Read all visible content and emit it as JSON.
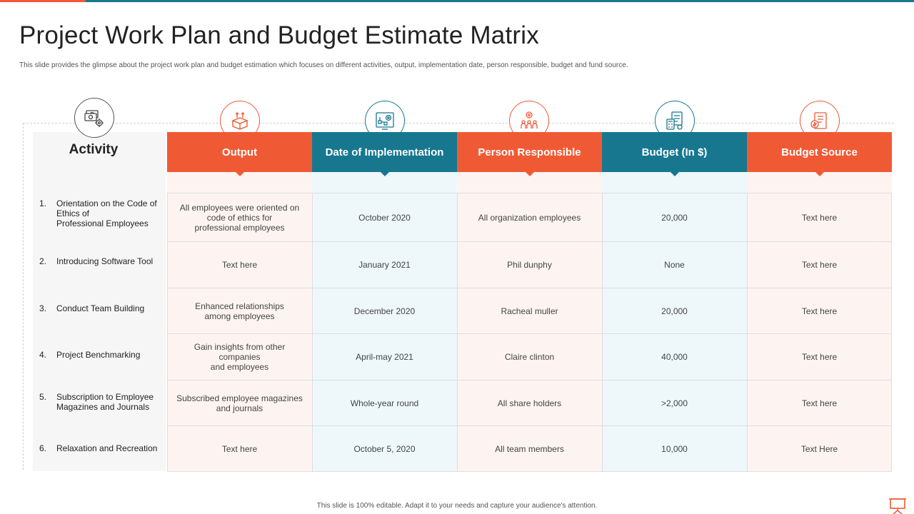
{
  "title": "Project Work Plan and Budget Estimate Matrix",
  "subtitle": "This slide provides the glimpse about the project work plan and budget estimation  which focuses on different activities, output, implementation  date, person responsible, budget and fund source.",
  "activity_header": "Activity",
  "columns": [
    "Output",
    "Date of Implementation",
    "Person Responsible",
    "Budget (In $)",
    "Budget Source"
  ],
  "column_icons": [
    "box-arrows-icon",
    "gear-flowchart-icon",
    "team-gear-icon",
    "calculator-document-icon",
    "money-notepad-icon"
  ],
  "activity_icon": "money-gear-icon",
  "rows": [
    {
      "num": "1.",
      "activity": "Orientation on the Code of\nEthics of\nProfessional Employees",
      "cells": [
        "All employees were oriented on\ncode of ethics for\nprofessional employees",
        "October 2020",
        "All organization employees",
        "20,000",
        "Text here"
      ]
    },
    {
      "num": "2.",
      "activity": "Introducing Software Tool",
      "cells": [
        "Text here",
        "January 2021",
        "Phil dunphy",
        "None",
        "Text here"
      ]
    },
    {
      "num": "3.",
      "activity": "Conduct Team Building",
      "cells": [
        "Enhanced relationships\namong employees",
        "December 2020",
        "Racheal muller",
        "20,000",
        "Text here"
      ]
    },
    {
      "num": "4.",
      "activity": "Project Benchmarking",
      "cells": [
        "Gain insights from other\ncompanies\nand employees",
        "April-may 2021",
        "Claire clinton",
        "40,000",
        "Text here"
      ]
    },
    {
      "num": "5.",
      "activity": "Subscription to Employee\nMagazines and Journals",
      "cells": [
        "Subscribed employee magazines\nand journals",
        "Whole-year round",
        "All share holders",
        ">2,000",
        "Text here"
      ]
    },
    {
      "num": "6.",
      "activity": "Relaxation and Recreation",
      "cells": [
        "Text here",
        "October 5, 2020",
        "All team members",
        "10,000",
        "Text Here"
      ]
    }
  ],
  "footer": "This slide is 100% editable.  Adapt it to your needs and capture your audience's attention.",
  "colors": {
    "orange": "#ef5a35",
    "teal": "#17778f"
  }
}
